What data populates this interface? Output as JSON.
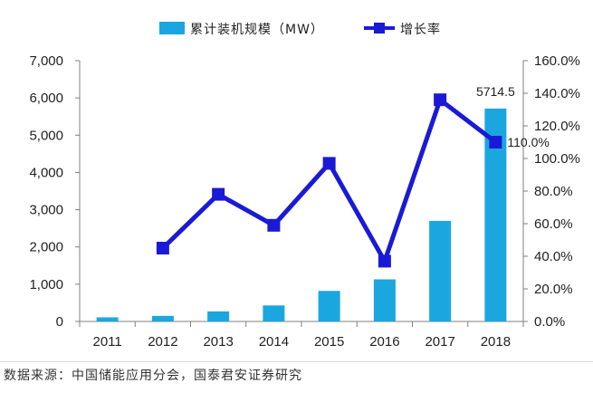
{
  "chart_data": {
    "type": "bar+line",
    "categories": [
      "2011",
      "2012",
      "2013",
      "2014",
      "2015",
      "2016",
      "2017",
      "2018"
    ],
    "series": [
      {
        "name": "累计装机规模（MW）",
        "type": "bar",
        "axis": "left",
        "values": [
          110,
          150,
          270,
          430,
          820,
          1130,
          2700,
          5714.5
        ],
        "color": "#1aa7e0"
      },
      {
        "name": "增长率",
        "type": "line",
        "axis": "right",
        "values": [
          null,
          45.0,
          78.0,
          59.0,
          97.0,
          37.0,
          136.0,
          110.0
        ],
        "color": "#1a1ad6"
      }
    ],
    "y_left": {
      "min": 0,
      "max": 7000,
      "step": 1000,
      "tick_labels": [
        "0",
        "1,000",
        "2,000",
        "3,000",
        "4,000",
        "5,000",
        "6,000",
        "7,000"
      ]
    },
    "y_right": {
      "min": 0,
      "max": 160,
      "step": 20,
      "tick_labels": [
        "0.0%",
        "20.0%",
        "40.0%",
        "60.0%",
        "80.0%",
        "100.0%",
        "120.0%",
        "140.0%",
        "160.0%"
      ]
    },
    "annotations": [
      {
        "series": "累计装机规模（MW）",
        "category": "2018",
        "text": "5714.5"
      },
      {
        "series": "增长率",
        "category": "2018",
        "text": "110.0%"
      }
    ],
    "legend_position": "top-center",
    "grid": false
  },
  "source_note": "数据来源：中国储能应用分会，国泰君安证券研究"
}
